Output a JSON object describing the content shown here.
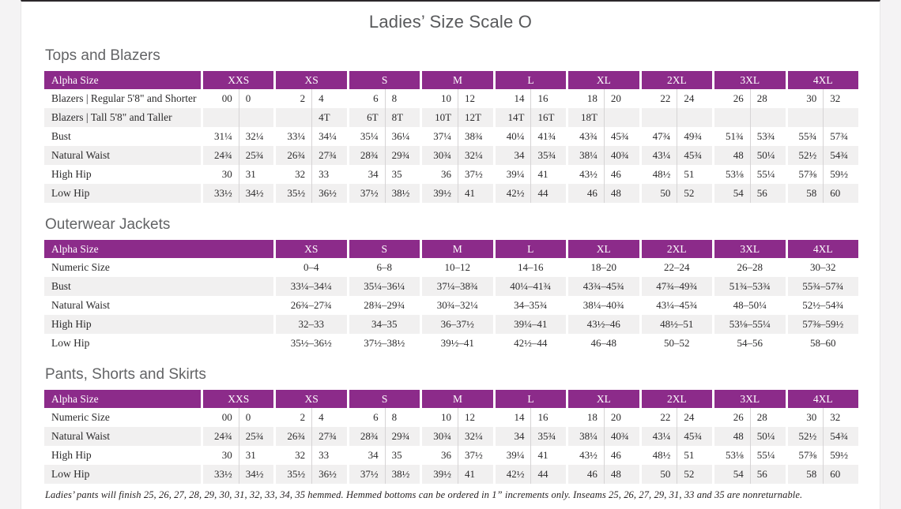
{
  "page": {
    "title": "Ladies’ Size Scale O",
    "footnote": "Ladies’ pants will finish 25, 26, 27, 28, 29, 30, 31, 32, 33, 34, 35 hemmed. Hemmed bottoms can be ordered in 1” increments only. Inseams 25, 26, 27, 29, 31, 33 and 35 are nonreturnable."
  },
  "colors": {
    "header_purple": "#8c2b8a",
    "row_alt_gray": "#f1f0f0",
    "divider_gray": "#d6d4d5",
    "heading_gray": "#636466",
    "title_gray": "#58595b",
    "text_dark": "#2b2a2b"
  },
  "tables": [
    {
      "id": "tops-and-blazers",
      "section_title": "Tops and Blazers",
      "label_header": "Alpha Size",
      "type": "paired",
      "size_groups": [
        "XXS",
        "XS",
        "S",
        "M",
        "L",
        "XL",
        "2XL",
        "3XL",
        "4XL"
      ],
      "rows": [
        {
          "label": "Blazers  |  Regular 5'8\" and Shorter",
          "values": [
            [
              "00",
              "0"
            ],
            [
              "2",
              "4"
            ],
            [
              "6",
              "8"
            ],
            [
              "10",
              "12"
            ],
            [
              "14",
              "16"
            ],
            [
              "18",
              "20"
            ],
            [
              "22",
              "24"
            ],
            [
              "26",
              "28"
            ],
            [
              "30",
              "32"
            ]
          ]
        },
        {
          "label": "Blazers  |  Tall 5'8\" and Taller",
          "values": [
            [
              "",
              ""
            ],
            [
              "",
              "4T"
            ],
            [
              "6T",
              "8T"
            ],
            [
              "10T",
              "12T"
            ],
            [
              "14T",
              "16T"
            ],
            [
              "18T",
              ""
            ],
            [
              "",
              ""
            ],
            [
              "",
              ""
            ],
            [
              "",
              ""
            ]
          ]
        },
        {
          "label": "Bust",
          "values": [
            [
              "31¼",
              "32¼"
            ],
            [
              "33¼",
              "34¼"
            ],
            [
              "35¼",
              "36¼"
            ],
            [
              "37¼",
              "38¾"
            ],
            [
              "40¼",
              "41¾"
            ],
            [
              "43¾",
              "45¾"
            ],
            [
              "47¾",
              "49¾"
            ],
            [
              "51¾",
              "53¾"
            ],
            [
              "55¾",
              "57¾"
            ]
          ]
        },
        {
          "label": "Natural Waist",
          "values": [
            [
              "24¾",
              "25¾"
            ],
            [
              "26¾",
              "27¾"
            ],
            [
              "28¾",
              "29¾"
            ],
            [
              "30¾",
              "32¼"
            ],
            [
              "34",
              "35¾"
            ],
            [
              "38¼",
              "40¾"
            ],
            [
              "43¼",
              "45¾"
            ],
            [
              "48",
              "50¼"
            ],
            [
              "52½",
              "54¾"
            ]
          ]
        },
        {
          "label": "High Hip",
          "values": [
            [
              "30",
              "31"
            ],
            [
              "32",
              "33"
            ],
            [
              "34",
              "35"
            ],
            [
              "36",
              "37½"
            ],
            [
              "39¼",
              "41"
            ],
            [
              "43½",
              "46"
            ],
            [
              "48½",
              "51"
            ],
            [
              "53⅛",
              "55¼"
            ],
            [
              "57⅜",
              "59½"
            ]
          ]
        },
        {
          "label": "Low Hip",
          "values": [
            [
              "33½",
              "34½"
            ],
            [
              "35½",
              "36½"
            ],
            [
              "37½",
              "38½"
            ],
            [
              "39½",
              "41"
            ],
            [
              "42½",
              "44"
            ],
            [
              "46",
              "48"
            ],
            [
              "50",
              "52"
            ],
            [
              "54",
              "56"
            ],
            [
              "58",
              "60"
            ]
          ]
        }
      ]
    },
    {
      "id": "outerwear-jackets",
      "section_title": "Outerwear Jackets",
      "label_header": "Alpha Size",
      "type": "single",
      "size_groups": [
        "XS",
        "S",
        "M",
        "L",
        "XL",
        "2XL",
        "3XL",
        "4XL"
      ],
      "rows": [
        {
          "label": "Numeric Size",
          "values": [
            "0–4",
            "6–8",
            "10–12",
            "14–16",
            "18–20",
            "22–24",
            "26–28",
            "30–32"
          ]
        },
        {
          "label": "Bust",
          "values": [
            "33¼–34¼",
            "35¼–36¼",
            "37¼–38¾",
            "40¼–41¾",
            "43¾–45¾",
            "47¾–49¾",
            "51¾–53¾",
            "55¾–57¾"
          ]
        },
        {
          "label": "Natural Waist",
          "values": [
            "26¾–27¾",
            "28¾–29¾",
            "30¾–32¼",
            "34–35¾",
            "38¼–40¾",
            "43¼–45¾",
            "48–50¼",
            "52½–54¾"
          ]
        },
        {
          "label": "High Hip",
          "values": [
            "32–33",
            "34–35",
            "36–37½",
            "39¼–41",
            "43½–46",
            "48½–51",
            "53⅛–55¼",
            "57⅜–59½"
          ]
        },
        {
          "label": "Low Hip",
          "values": [
            "35½–36½",
            "37½–38½",
            "39½–41",
            "42½–44",
            "46–48",
            "50–52",
            "54–56",
            "58–60"
          ]
        }
      ]
    },
    {
      "id": "pants-shorts-skirts",
      "section_title": "Pants, Shorts and Skirts",
      "label_header": "Alpha Size",
      "type": "paired",
      "size_groups": [
        "XXS",
        "XS",
        "S",
        "M",
        "L",
        "XL",
        "2XL",
        "3XL",
        "4XL"
      ],
      "rows": [
        {
          "label": "Numeric Size",
          "values": [
            [
              "00",
              "0"
            ],
            [
              "2",
              "4"
            ],
            [
              "6",
              "8"
            ],
            [
              "10",
              "12"
            ],
            [
              "14",
              "16"
            ],
            [
              "18",
              "20"
            ],
            [
              "22",
              "24"
            ],
            [
              "26",
              "28"
            ],
            [
              "30",
              "32"
            ]
          ]
        },
        {
          "label": "Natural Waist",
          "values": [
            [
              "24¾",
              "25¾"
            ],
            [
              "26¾",
              "27¾"
            ],
            [
              "28¾",
              "29¾"
            ],
            [
              "30¾",
              "32¼"
            ],
            [
              "34",
              "35¾"
            ],
            [
              "38¼",
              "40¾"
            ],
            [
              "43¼",
              "45¾"
            ],
            [
              "48",
              "50¼"
            ],
            [
              "52½",
              "54¾"
            ]
          ]
        },
        {
          "label": "High Hip",
          "values": [
            [
              "30",
              "31"
            ],
            [
              "32",
              "33"
            ],
            [
              "34",
              "35"
            ],
            [
              "36",
              "37½"
            ],
            [
              "39¼",
              "41"
            ],
            [
              "43½",
              "46"
            ],
            [
              "48½",
              "51"
            ],
            [
              "53⅛",
              "55¼"
            ],
            [
              "57⅜",
              "59½"
            ]
          ]
        },
        {
          "label": "Low Hip",
          "values": [
            [
              "33½",
              "34½"
            ],
            [
              "35½",
              "36½"
            ],
            [
              "37½",
              "38½"
            ],
            [
              "39½",
              "41"
            ],
            [
              "42½",
              "44"
            ],
            [
              "46",
              "48"
            ],
            [
              "50",
              "52"
            ],
            [
              "54",
              "56"
            ],
            [
              "58",
              "60"
            ]
          ]
        }
      ]
    }
  ]
}
